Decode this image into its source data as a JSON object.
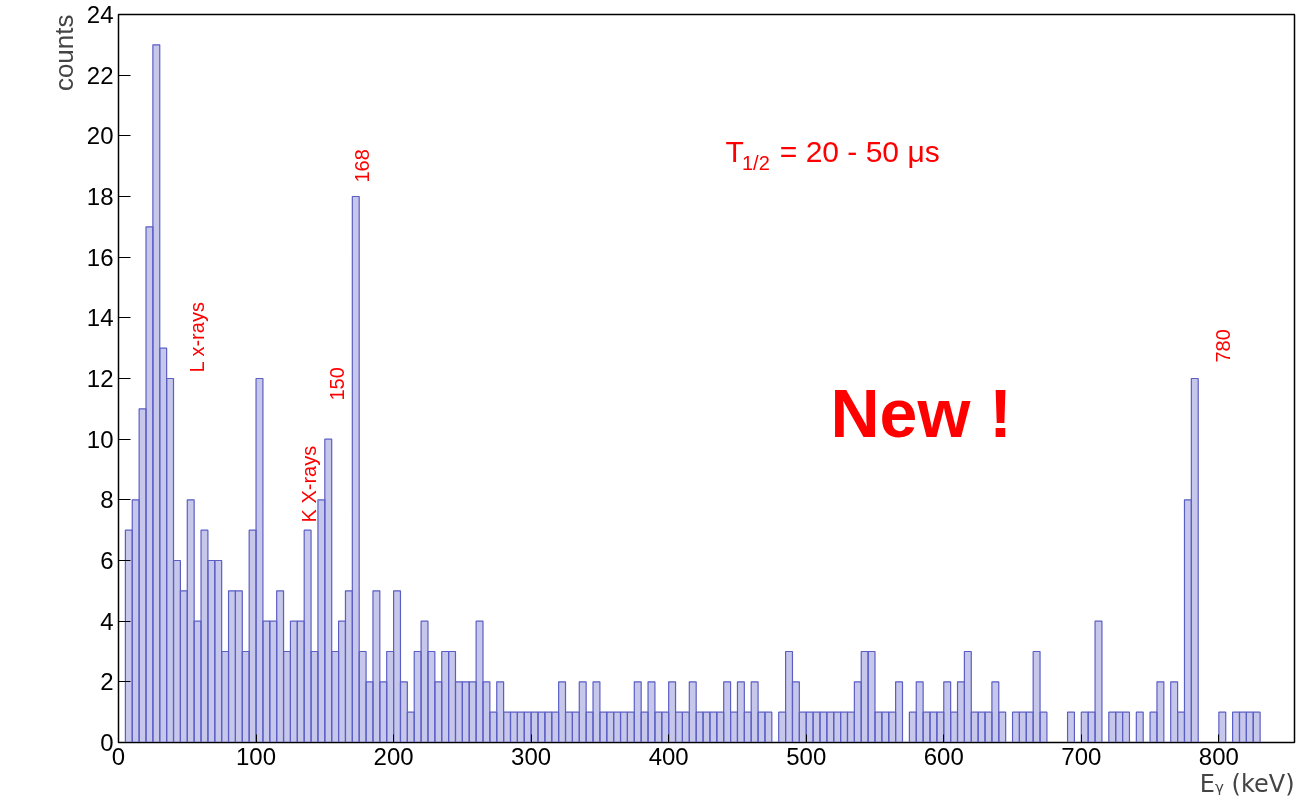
{
  "chart_data": {
    "type": "histogram",
    "xlabel": "Eᵧ (keV)",
    "ylabel": "counts",
    "bins": [
      0,
      5,
      10,
      15,
      20,
      25,
      30,
      35,
      40,
      45,
      50,
      55,
      60,
      65,
      70,
      75,
      80,
      85,
      90,
      95,
      100,
      105,
      110,
      115,
      120,
      125,
      130,
      135,
      140,
      145,
      150,
      155,
      160,
      165,
      170,
      175,
      180,
      185,
      190,
      195,
      200,
      205,
      210,
      215,
      220,
      225,
      230,
      235,
      240,
      245,
      250,
      255,
      260,
      265,
      270,
      275,
      280,
      285,
      290,
      295,
      300,
      305,
      310,
      315,
      320,
      325,
      330,
      335,
      340,
      345,
      350,
      355,
      360,
      365,
      370,
      375,
      380,
      385,
      390,
      395,
      400,
      405,
      410,
      415,
      420,
      425,
      430,
      435,
      440,
      445,
      450,
      455,
      460,
      465,
      470,
      475,
      480,
      485,
      490,
      495,
      500,
      505,
      510,
      515,
      520,
      525,
      530,
      535,
      540,
      545,
      550,
      555,
      560,
      565,
      570,
      575,
      580,
      585,
      590,
      595,
      600,
      605,
      610,
      615,
      620,
      625,
      630,
      635,
      640,
      645,
      650,
      655,
      660,
      665,
      670,
      675,
      680,
      685,
      690,
      695,
      700,
      705,
      710,
      715,
      720,
      725,
      730,
      735,
      740,
      745,
      750,
      755,
      760,
      765,
      770,
      775,
      780,
      785,
      790,
      795,
      800,
      805,
      810,
      815,
      820,
      825,
      830,
      835
    ],
    "values": [
      0,
      7,
      8,
      11,
      17,
      23,
      13,
      12,
      6,
      5,
      8,
      4,
      7,
      6,
      6,
      3,
      5,
      5,
      3,
      7,
      12,
      4,
      4,
      5,
      3,
      4,
      4,
      7,
      3,
      8,
      10,
      3,
      4,
      5,
      18,
      3,
      2,
      5,
      2,
      3,
      5,
      2,
      1,
      3,
      4,
      3,
      2,
      3,
      3,
      2,
      2,
      2,
      4,
      2,
      1,
      2,
      1,
      1,
      1,
      1,
      1,
      1,
      1,
      1,
      2,
      1,
      1,
      2,
      1,
      2,
      1,
      1,
      1,
      1,
      1,
      2,
      1,
      2,
      1,
      1,
      2,
      1,
      1,
      2,
      1,
      1,
      1,
      1,
      2,
      1,
      2,
      1,
      2,
      1,
      1,
      0,
      1,
      3,
      2,
      1,
      1,
      1,
      1,
      1,
      1,
      1,
      1,
      2,
      3,
      3,
      1,
      1,
      1,
      2,
      0,
      1,
      2,
      1,
      1,
      1,
      2,
      1,
      2,
      3,
      1,
      1,
      1,
      2,
      1,
      0,
      1,
      1,
      1,
      3,
      1,
      0,
      0,
      0,
      1,
      0,
      1,
      1,
      4,
      0,
      1,
      1,
      1,
      0,
      1,
      0,
      1,
      2,
      0,
      2,
      1,
      8,
      12,
      0,
      0,
      0,
      1,
      0,
      1,
      1,
      1,
      1,
      0
    ],
    "color": "#5b5fc4",
    "xlim": [
      0,
      855
    ],
    "ylim": [
      0,
      24
    ],
    "xticks": [
      0,
      100,
      200,
      300,
      400,
      500,
      600,
      700,
      800
    ],
    "yticks": [
      0,
      2,
      4,
      6,
      8,
      10,
      12,
      14,
      16,
      18,
      20,
      22,
      24
    ],
    "grid": false,
    "annotations": [
      "L x-rays",
      "K X-rays",
      "150",
      "168",
      "780",
      "T$_{1/2}$ = 20  - 50 μs",
      "New !"
    ]
  }
}
